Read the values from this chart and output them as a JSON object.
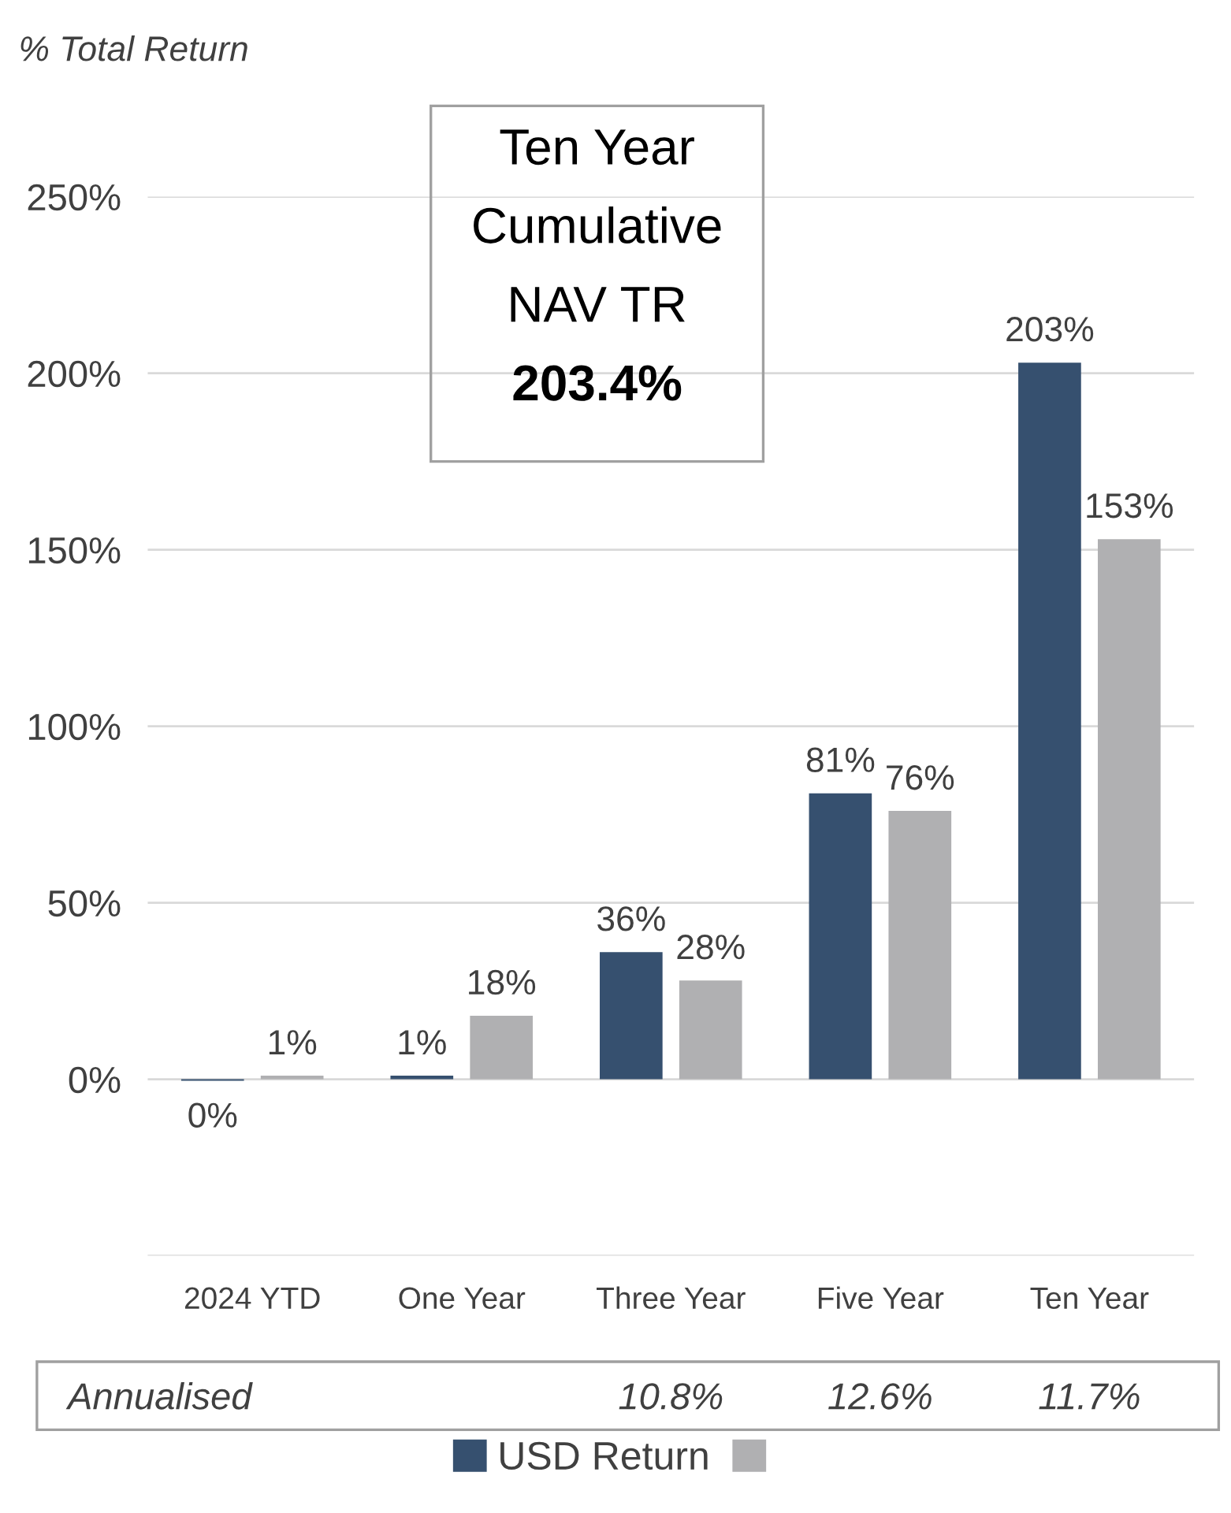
{
  "chart_data": {
    "type": "bar",
    "ylabel": "% Total Return",
    "categories": [
      "2024 YTD",
      "One Year",
      "Three Year",
      "Five Year",
      "Ten Year"
    ],
    "series": [
      {
        "name": "USD Return",
        "color": "#36506f",
        "values": [
          -0.4,
          1,
          36,
          81,
          203
        ],
        "value_labels": [
          "0%",
          "1%",
          "36%",
          "81%",
          "203%"
        ]
      },
      {
        "color": "#b0b0b2",
        "values": [
          1,
          18,
          28,
          76,
          153
        ],
        "value_labels": [
          "1%",
          "18%",
          "28%",
          "76%",
          "153%"
        ]
      }
    ],
    "ylim": [
      -50,
      250
    ],
    "yticks": [
      {
        "value": -50,
        "label": null
      },
      {
        "value": 0,
        "label": "0%"
      },
      {
        "value": 50,
        "label": "50%"
      },
      {
        "value": 100,
        "label": "100%"
      },
      {
        "value": 150,
        "label": "150%"
      },
      {
        "value": 200,
        "label": "200%"
      },
      {
        "value": 250,
        "label": "250%"
      }
    ],
    "grid": "y",
    "legend": "bottom",
    "annotations": [
      "Ten Year\nCumulative\nNAV TR\n203.4%",
      "Annualised",
      "10.8%",
      "12.6%",
      "11.7%"
    ]
  }
}
